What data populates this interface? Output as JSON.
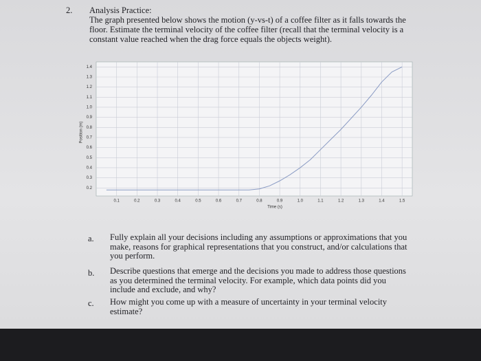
{
  "question": {
    "number": "2.",
    "title": "Analysis Practice:",
    "body": "The graph presented below shows the motion (y-vs-t) of a coffee filter as it falls towards the floor. Estimate the terminal velocity of the coffee filter (recall that the terminal velocity is a constant value reached when the drag force equals the objects weight)."
  },
  "chart_data": {
    "type": "line",
    "x_label": "Time (s)",
    "y_label": "Position (m)",
    "x": [
      0.05,
      0.2,
      0.4,
      0.6,
      0.75,
      0.8,
      0.85,
      0.9,
      0.95,
      1.0,
      1.05,
      1.1,
      1.15,
      1.2,
      1.25,
      1.3,
      1.35,
      1.4,
      1.45,
      1.5
    ],
    "series": [
      {
        "name": "Position",
        "color": "#8a9bc4",
        "values": [
          0.18,
          0.18,
          0.18,
          0.18,
          0.18,
          0.19,
          0.22,
          0.27,
          0.33,
          0.4,
          0.48,
          0.58,
          0.68,
          0.78,
          0.89,
          1.0,
          1.12,
          1.25,
          1.35,
          1.4
        ]
      }
    ],
    "xlim": [
      0,
      1.55
    ],
    "ylim": [
      0.12,
      1.45
    ],
    "xticks": [
      0.1,
      0.2,
      0.3,
      0.4,
      0.5,
      0.6,
      0.7,
      0.8,
      0.9,
      {
        "value": 1,
        "label": "1.0"
      },
      1.1,
      1.2,
      1.3,
      1.4,
      1.5
    ],
    "yticks": [
      0.2,
      0.3,
      0.4,
      0.5,
      0.6,
      0.7,
      0.8,
      0.9,
      {
        "value": 1,
        "label": "1.0"
      },
      1.1,
      1.2,
      1.3,
      1.4
    ],
    "grid": true
  },
  "parts": [
    {
      "marker": "a.",
      "text": "Fully explain all your decisions including any assumptions or approximations that you make, reasons for graphical representations that you construct, and/or calculations that you perform."
    },
    {
      "marker": "b.",
      "text": "Describe questions that emerge and the decisions you made to address those questions as you determined the terminal velocity. For example, which data points did you include and exclude, and why?"
    },
    {
      "marker": "c.",
      "text": "How might you come up with a measure of uncertainty in your terminal velocity estimate?"
    }
  ]
}
